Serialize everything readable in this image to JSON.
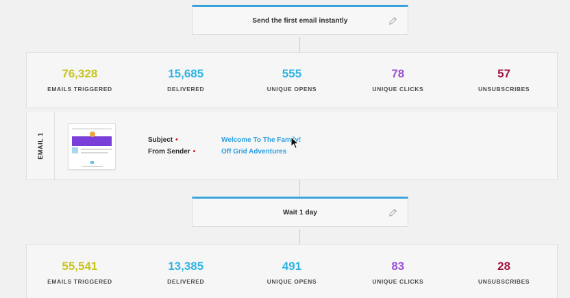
{
  "step1": {
    "label": "Send the first email instantly"
  },
  "stats1": [
    {
      "value": "76,328",
      "label": "EMAILS TRIGGERED",
      "color": "#c9c41f"
    },
    {
      "value": "15,685",
      "label": "DELIVERED",
      "color": "#2fb3e3"
    },
    {
      "value": "555",
      "label": "UNIQUE OPENS",
      "color": "#2fb3e3"
    },
    {
      "value": "78",
      "label": "UNIQUE CLICKS",
      "color": "#9b4fd6"
    },
    {
      "value": "57",
      "label": "UNSUBSCRIBES",
      "color": "#a3143f"
    }
  ],
  "email": {
    "tag": "EMAIL 1",
    "subject_label": "Subject",
    "subject_value": "Welcome To The Family!",
    "sender_label": "From Sender",
    "sender_value": "Off Grid Adventures",
    "required_mark": "•"
  },
  "step2": {
    "label": "Wait 1 day"
  },
  "stats2": [
    {
      "value": "55,541",
      "label": "EMAILS TRIGGERED",
      "color": "#c9c41f"
    },
    {
      "value": "13,385",
      "label": "DELIVERED",
      "color": "#2fb3e3"
    },
    {
      "value": "491",
      "label": "UNIQUE OPENS",
      "color": "#2fb3e3"
    },
    {
      "value": "83",
      "label": "UNIQUE CLICKS",
      "color": "#9b4fd6"
    },
    {
      "value": "28",
      "label": "UNSUBSCRIBES",
      "color": "#a3143f"
    }
  ],
  "icons": {
    "edit": "pencil-icon",
    "cursor": "mouse-pointer-icon"
  }
}
